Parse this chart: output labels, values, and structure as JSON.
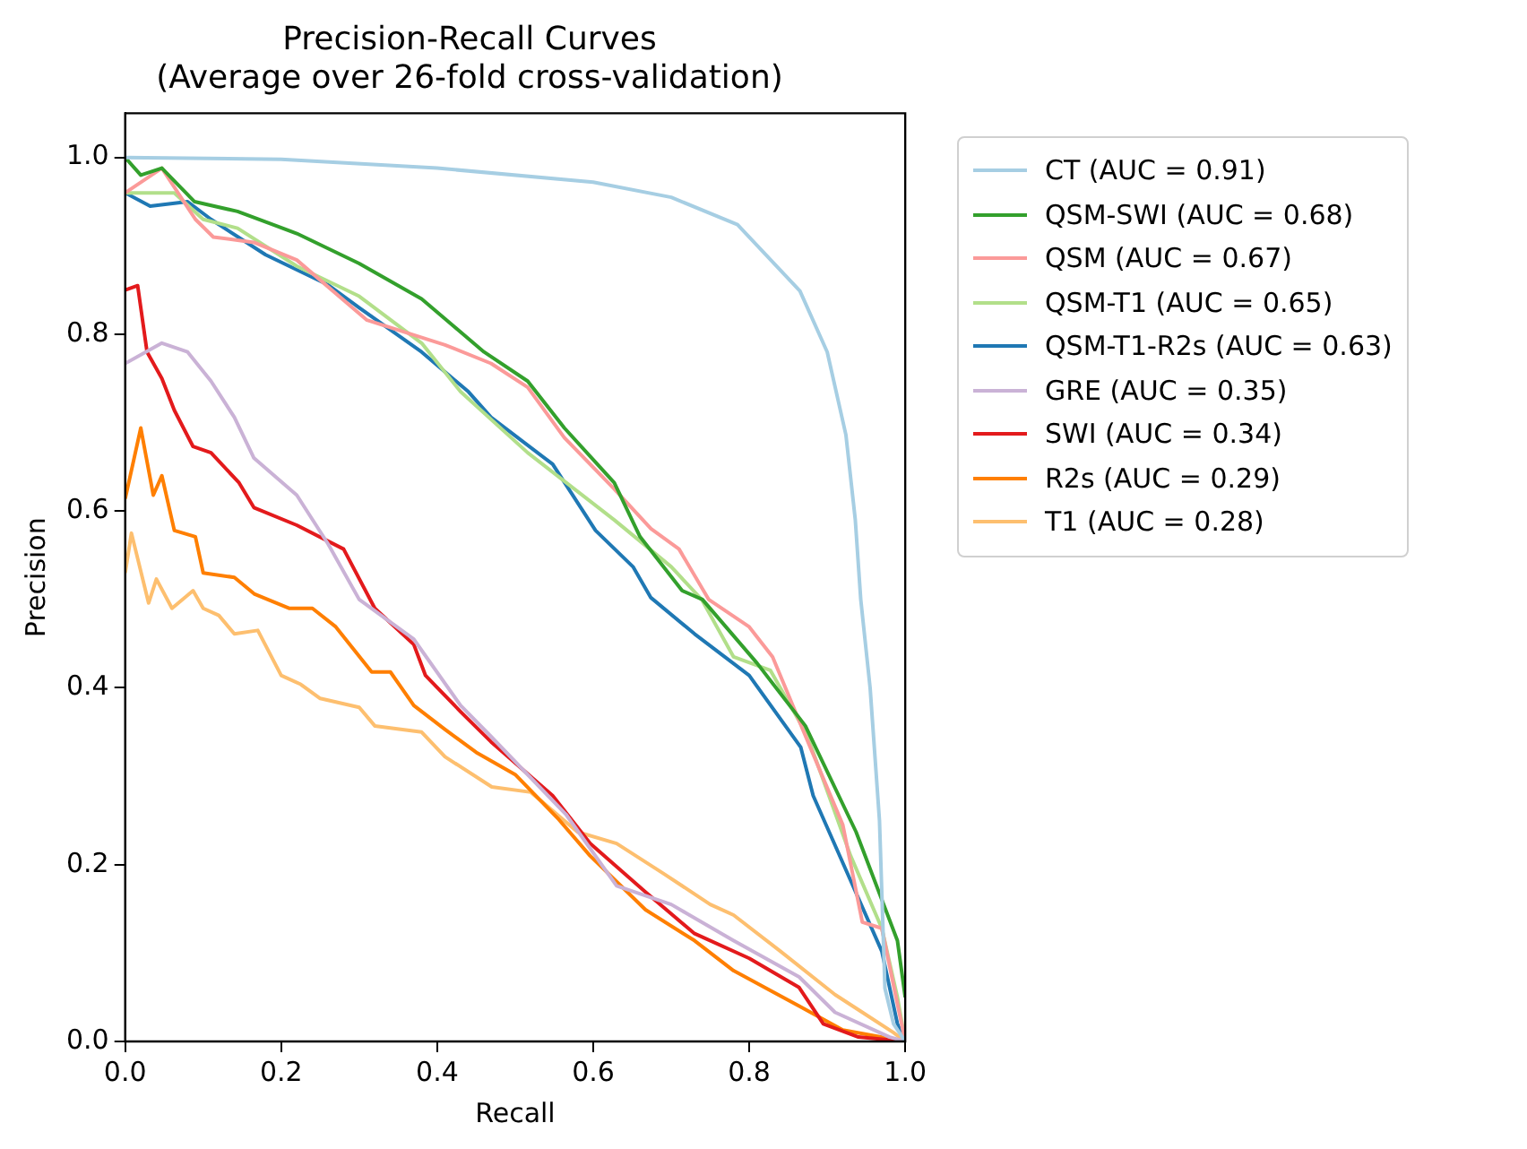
{
  "chart_data": {
    "type": "line",
    "title": "Precision-Recall Curves\n(Average over 26-fold cross-validation)",
    "xlabel": "Recall",
    "ylabel": "Precision",
    "xlim": [
      0,
      1.0
    ],
    "ylim": [
      0,
      1.05
    ],
    "xticks": [
      {
        "value": 0,
        "label": "0.0"
      },
      {
        "value": 0.2,
        "label": "0.2"
      },
      {
        "value": 0.4,
        "label": "0.4"
      },
      {
        "value": 0.6,
        "label": "0.6"
      },
      {
        "value": 0.8,
        "label": "0.8"
      },
      {
        "value": 1,
        "label": "1.0"
      }
    ],
    "yticks": [
      {
        "value": 0,
        "label": "0.0"
      },
      {
        "value": 0.2,
        "label": "0.2"
      },
      {
        "value": 0.4,
        "label": "0.4"
      },
      {
        "value": 0.6,
        "label": "0.6"
      },
      {
        "value": 0.8,
        "label": "0.8"
      },
      {
        "value": 1,
        "label": "1.0"
      }
    ],
    "grid": false,
    "legend": "right",
    "marker": "none",
    "line_style": "solid",
    "series": [
      {
        "name": "CT (AUC = 0.91)",
        "color": "#a6cee3",
        "x": [
          0,
          0.2,
          0.4,
          0.6,
          0.7,
          0.785,
          0.865,
          0.9,
          0.924,
          0.936,
          0.943,
          0.955,
          0.967,
          0.974,
          0.985,
          1.0
        ],
        "values": [
          1.0,
          0.998,
          0.988,
          0.972,
          0.955,
          0.924,
          0.849,
          0.78,
          0.686,
          0.59,
          0.5,
          0.4,
          0.25,
          0.06,
          0.02,
          0.0
        ]
      },
      {
        "name": "QSM-SWI (AUC = 0.68)",
        "color": "#33a02c",
        "x": [
          0,
          0.02,
          0.047,
          0.089,
          0.144,
          0.22,
          0.3,
          0.38,
          0.46,
          0.516,
          0.563,
          0.627,
          0.66,
          0.714,
          0.74,
          0.81,
          0.872,
          0.937,
          0.99,
          1.0
        ],
        "values": [
          1.0,
          0.98,
          0.988,
          0.95,
          0.939,
          0.914,
          0.88,
          0.84,
          0.78,
          0.747,
          0.694,
          0.632,
          0.571,
          0.51,
          0.5,
          0.428,
          0.357,
          0.237,
          0.114,
          0.05
        ]
      },
      {
        "name": "QSM (AUC = 0.67)",
        "color": "#fb9a99",
        "x": [
          0,
          0.047,
          0.09,
          0.113,
          0.165,
          0.22,
          0.31,
          0.346,
          0.41,
          0.469,
          0.516,
          0.563,
          0.627,
          0.674,
          0.71,
          0.748,
          0.8,
          0.83,
          0.87,
          0.92,
          0.945,
          0.97,
          1.0
        ],
        "values": [
          0.96,
          0.988,
          0.93,
          0.91,
          0.904,
          0.884,
          0.816,
          0.806,
          0.788,
          0.767,
          0.74,
          0.683,
          0.625,
          0.58,
          0.557,
          0.5,
          0.469,
          0.435,
          0.35,
          0.245,
          0.135,
          0.128,
          0.0
        ]
      },
      {
        "name": "QSM-T1 (AUC = 0.65)",
        "color": "#b2df8a",
        "x": [
          0,
          0.063,
          0.1,
          0.144,
          0.22,
          0.3,
          0.38,
          0.43,
          0.516,
          0.627,
          0.7,
          0.739,
          0.78,
          0.827,
          0.874,
          0.93,
          0.97,
          0.99,
          1.0
        ],
        "values": [
          0.96,
          0.96,
          0.93,
          0.92,
          0.877,
          0.843,
          0.79,
          0.735,
          0.666,
          0.59,
          0.537,
          0.5,
          0.435,
          0.42,
          0.347,
          0.21,
          0.128,
          0.05,
          0.0
        ]
      },
      {
        "name": "QSM-T1-R2s (AUC = 0.63)",
        "color": "#1f78b4",
        "x": [
          0,
          0.032,
          0.08,
          0.11,
          0.18,
          0.26,
          0.3,
          0.38,
          0.44,
          0.469,
          0.548,
          0.603,
          0.651,
          0.674,
          0.73,
          0.8,
          0.866,
          0.882,
          0.929,
          0.97,
          0.99,
          1.0
        ],
        "values": [
          0.96,
          0.945,
          0.95,
          0.93,
          0.89,
          0.856,
          0.83,
          0.78,
          0.735,
          0.706,
          0.653,
          0.578,
          0.537,
          0.502,
          0.461,
          0.414,
          0.333,
          0.278,
          0.184,
          0.102,
          0.02,
          0.0
        ]
      },
      {
        "name": "GRE (AUC = 0.35)",
        "color": "#cab2d6",
        "x": [
          0,
          0.047,
          0.08,
          0.11,
          0.14,
          0.165,
          0.22,
          0.26,
          0.3,
          0.37,
          0.43,
          0.469,
          0.565,
          0.63,
          0.7,
          0.78,
          0.864,
          0.91,
          0.98,
          1.0
        ],
        "values": [
          0.767,
          0.79,
          0.78,
          0.747,
          0.706,
          0.66,
          0.618,
          0.563,
          0.5,
          0.455,
          0.38,
          0.345,
          0.257,
          0.176,
          0.155,
          0.114,
          0.073,
          0.033,
          0.005,
          0.0
        ]
      },
      {
        "name": "SWI (AUC = 0.34)",
        "color": "#e31a1c",
        "x": [
          0,
          0.016,
          0.028,
          0.047,
          0.063,
          0.087,
          0.11,
          0.146,
          0.165,
          0.22,
          0.28,
          0.32,
          0.37,
          0.385,
          0.43,
          0.469,
          0.548,
          0.596,
          0.667,
          0.73,
          0.8,
          0.864,
          0.895,
          0.94,
          1.0
        ],
        "values": [
          0.85,
          0.855,
          0.78,
          0.75,
          0.714,
          0.673,
          0.666,
          0.632,
          0.604,
          0.584,
          0.557,
          0.49,
          0.449,
          0.414,
          0.373,
          0.339,
          0.278,
          0.224,
          0.169,
          0.122,
          0.094,
          0.061,
          0.02,
          0.005,
          0.0
        ]
      },
      {
        "name": "R2s (AUC = 0.29)",
        "color": "#ff7f00",
        "x": [
          0,
          0.02,
          0.036,
          0.047,
          0.063,
          0.09,
          0.1,
          0.14,
          0.166,
          0.21,
          0.24,
          0.27,
          0.316,
          0.34,
          0.37,
          0.41,
          0.45,
          0.5,
          0.556,
          0.596,
          0.667,
          0.73,
          0.78,
          0.864,
          0.92,
          1.0
        ],
        "values": [
          0.614,
          0.694,
          0.618,
          0.64,
          0.578,
          0.571,
          0.53,
          0.525,
          0.506,
          0.49,
          0.49,
          0.469,
          0.418,
          0.418,
          0.38,
          0.353,
          0.327,
          0.302,
          0.251,
          0.21,
          0.149,
          0.114,
          0.08,
          0.04,
          0.013,
          0.0
        ]
      },
      {
        "name": "T1 (AUC = 0.28)",
        "color": "#fdbf6f",
        "x": [
          0,
          0.008,
          0.03,
          0.04,
          0.06,
          0.087,
          0.1,
          0.12,
          0.14,
          0.17,
          0.2,
          0.225,
          0.25,
          0.3,
          0.32,
          0.38,
          0.41,
          0.47,
          0.52,
          0.58,
          0.63,
          0.69,
          0.75,
          0.78,
          0.84,
          0.91,
          0.945,
          0.985,
          1.0
        ],
        "values": [
          0.53,
          0.575,
          0.496,
          0.523,
          0.49,
          0.51,
          0.49,
          0.482,
          0.461,
          0.465,
          0.414,
          0.404,
          0.388,
          0.378,
          0.357,
          0.35,
          0.322,
          0.288,
          0.282,
          0.237,
          0.224,
          0.19,
          0.155,
          0.143,
          0.102,
          0.053,
          0.033,
          0.01,
          0.0
        ]
      }
    ]
  }
}
